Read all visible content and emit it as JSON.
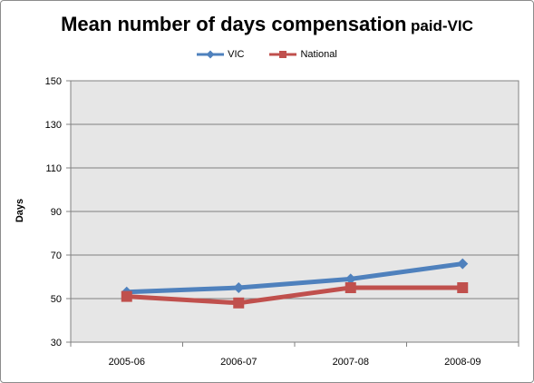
{
  "chart_data": {
    "type": "line",
    "title": "Mean number of days compensation",
    "title_suffix": "paid-VIC",
    "xlabel": "",
    "ylabel": "Days",
    "categories": [
      "2005-06",
      "2006-07",
      "2007-08",
      "2008-09"
    ],
    "series": [
      {
        "name": "VIC",
        "values": [
          53,
          55,
          59,
          66
        ],
        "color": "#4f81bd",
        "marker": "diamond"
      },
      {
        "name": "National",
        "values": [
          51,
          48,
          55,
          55
        ],
        "color": "#c0504d",
        "marker": "square"
      }
    ],
    "ylim": [
      30,
      150
    ],
    "yticks": [
      30,
      50,
      70,
      90,
      110,
      130,
      150
    ],
    "grid": true,
    "legend_position": "top",
    "plot_background": "#e6e6e6"
  }
}
